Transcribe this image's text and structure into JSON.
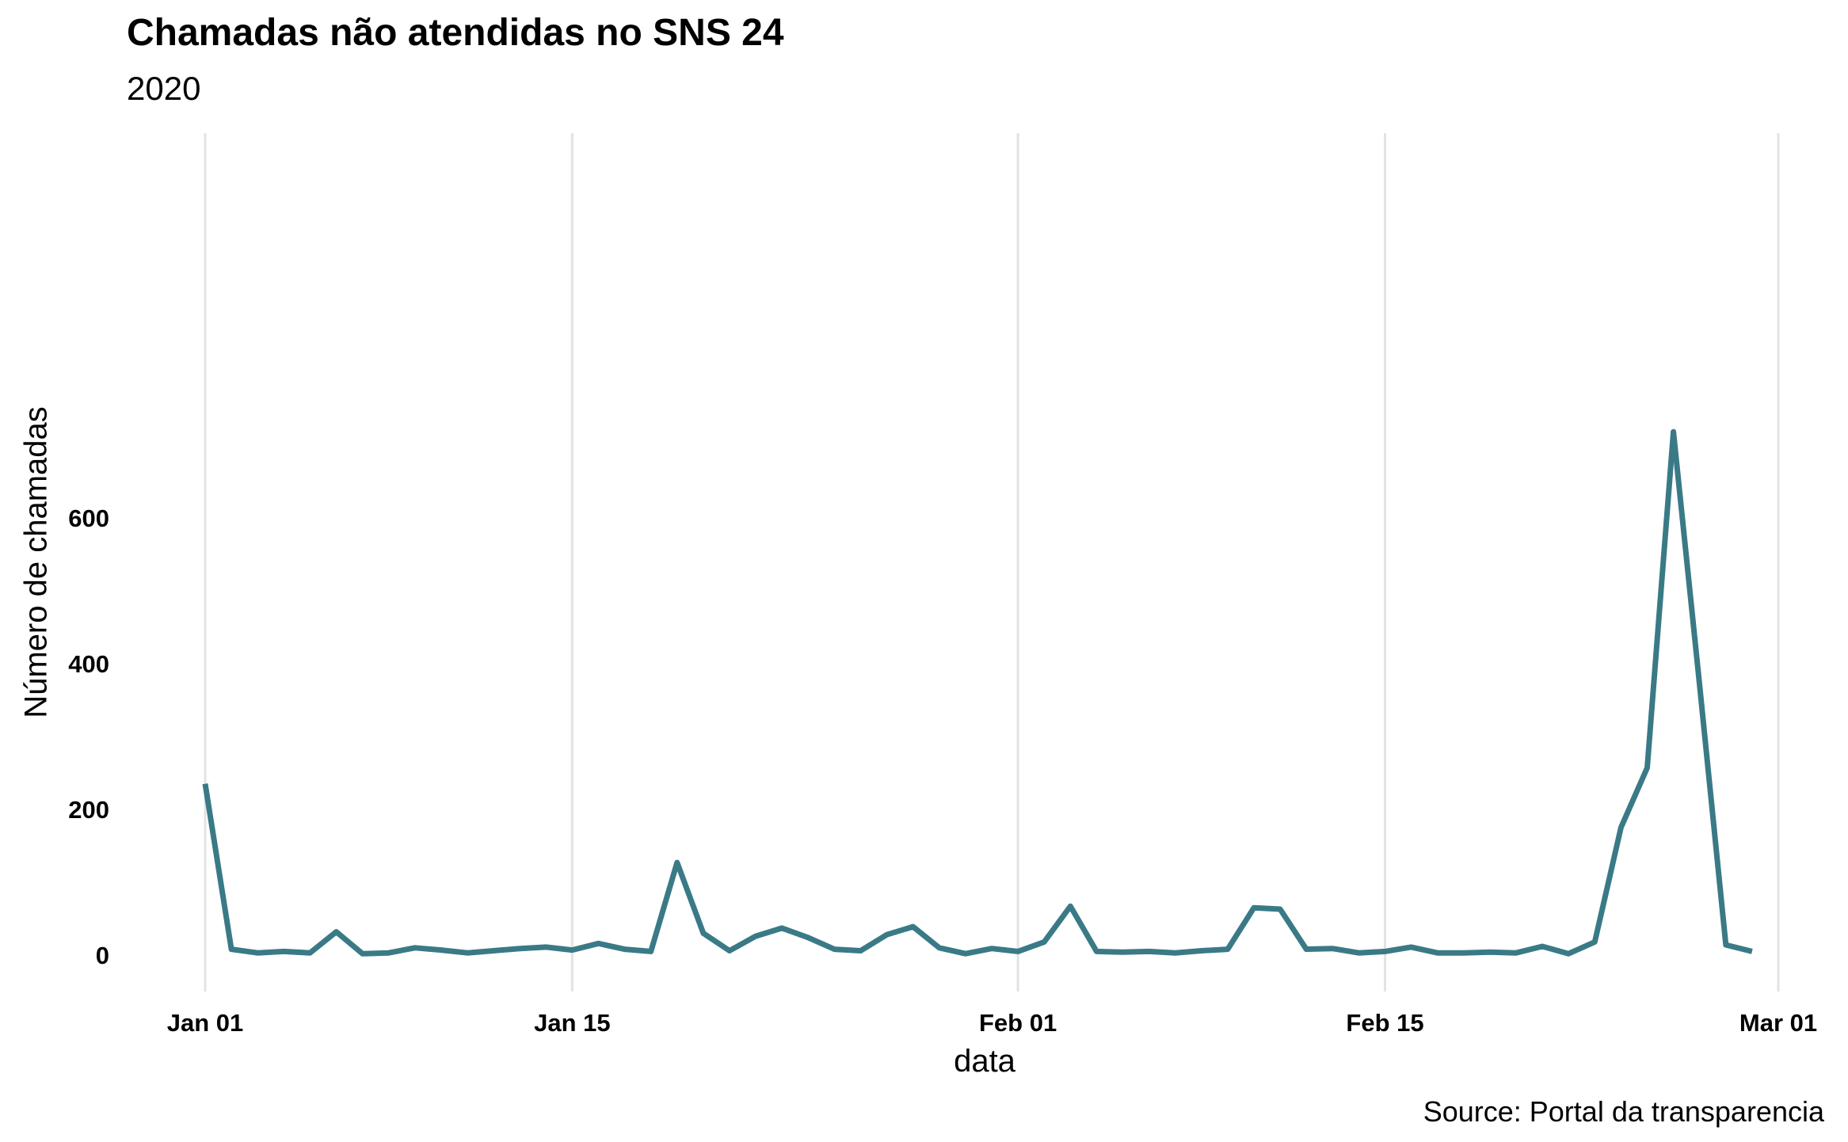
{
  "chart_data": {
    "type": "line",
    "title": "Chamadas não atendidas no SNS 24",
    "subtitle": "2020",
    "xlabel": "data",
    "ylabel": "Número de chamadas",
    "caption": "Source: Portal da transparencia",
    "x_start": "2020-01-01",
    "x_ticks": [
      "Jan 01",
      "Jan 15",
      "Feb 01",
      "Feb 15",
      "Mar 01"
    ],
    "y_ticks": [
      0,
      200,
      400,
      600
    ],
    "xlim": [
      "2020-01-01",
      "2020-03-01"
    ],
    "ylim": [
      0,
      720
    ],
    "grid": "vertical-major",
    "line_color": "#3a7a87",
    "x": [
      "2020-01-01",
      "2020-01-02",
      "2020-01-03",
      "2020-01-04",
      "2020-01-05",
      "2020-01-06",
      "2020-01-07",
      "2020-01-08",
      "2020-01-09",
      "2020-01-10",
      "2020-01-11",
      "2020-01-12",
      "2020-01-13",
      "2020-01-14",
      "2020-01-15",
      "2020-01-16",
      "2020-01-17",
      "2020-01-18",
      "2020-01-19",
      "2020-01-20",
      "2020-01-21",
      "2020-01-22",
      "2020-01-23",
      "2020-01-24",
      "2020-01-25",
      "2020-01-26",
      "2020-01-27",
      "2020-01-28",
      "2020-01-29",
      "2020-01-30",
      "2020-01-31",
      "2020-02-01",
      "2020-02-02",
      "2020-02-03",
      "2020-02-04",
      "2020-02-05",
      "2020-02-06",
      "2020-02-07",
      "2020-02-08",
      "2020-02-09",
      "2020-02-10",
      "2020-02-11",
      "2020-02-12",
      "2020-02-13",
      "2020-02-14",
      "2020-02-15",
      "2020-02-16",
      "2020-02-17",
      "2020-02-18",
      "2020-02-19",
      "2020-02-20",
      "2020-02-21",
      "2020-02-22",
      "2020-02-23",
      "2020-02-24",
      "2020-02-25",
      "2020-02-26",
      "2020-02-27",
      "2020-02-28",
      "2020-02-29"
    ],
    "values": [
      235,
      8,
      3,
      5,
      3,
      32,
      2,
      3,
      10,
      7,
      3,
      6,
      9,
      11,
      7,
      16,
      8,
      5,
      127,
      30,
      6,
      26,
      37,
      24,
      8,
      6,
      28,
      39,
      10,
      2,
      9,
      5,
      18,
      67,
      5,
      4,
      5,
      3,
      6,
      8,
      65,
      63,
      8,
      9,
      3,
      5,
      11,
      3,
      3,
      4,
      3,
      12,
      2,
      18,
      175,
      257,
      718,
      370,
      14,
      5
    ]
  }
}
